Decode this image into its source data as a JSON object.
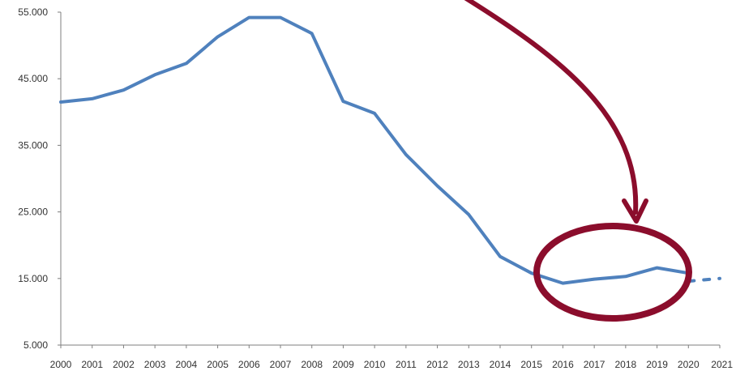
{
  "chart_data": {
    "type": "line",
    "title": "",
    "xlabel": "",
    "ylabel": "",
    "ylim": [
      5000,
      55000
    ],
    "yticks": [
      {
        "value": 5000,
        "label": "5.000"
      },
      {
        "value": 15000,
        "label": "15.000"
      },
      {
        "value": 25000,
        "label": "25.000"
      },
      {
        "value": 35000,
        "label": "35.000"
      },
      {
        "value": 45000,
        "label": "45.000"
      },
      {
        "value": 55000,
        "label": "55.000"
      }
    ],
    "categories": [
      "2000",
      "2001",
      "2002",
      "2003",
      "2004",
      "2005",
      "2006",
      "2007",
      "2008",
      "2009",
      "2010",
      "2011",
      "2012",
      "2013",
      "2014",
      "2015",
      "2016",
      "2017",
      "2018",
      "2019",
      "2020",
      "2021"
    ],
    "series": [
      {
        "values": [
          41500,
          42000,
          43300,
          45600,
          47300,
          51300,
          54200,
          54200,
          51800,
          41600,
          39800,
          33600,
          28900,
          24600,
          18300,
          15800,
          14300,
          14900,
          15300,
          16600,
          15800,
          null
        ],
        "color": "#4f81bd",
        "style": "solid"
      },
      {
        "values": [
          null,
          null,
          null,
          null,
          null,
          null,
          null,
          null,
          null,
          null,
          null,
          null,
          null,
          null,
          null,
          null,
          null,
          null,
          null,
          null,
          14600,
          15000
        ],
        "color": "#4f81bd",
        "style": "dashed"
      }
    ],
    "grid": false,
    "legend": "none",
    "annotation": {
      "type": "arrow-and-ellipse",
      "color": "#8b0d2c",
      "highlight_range": [
        "2015",
        "2020"
      ]
    }
  }
}
